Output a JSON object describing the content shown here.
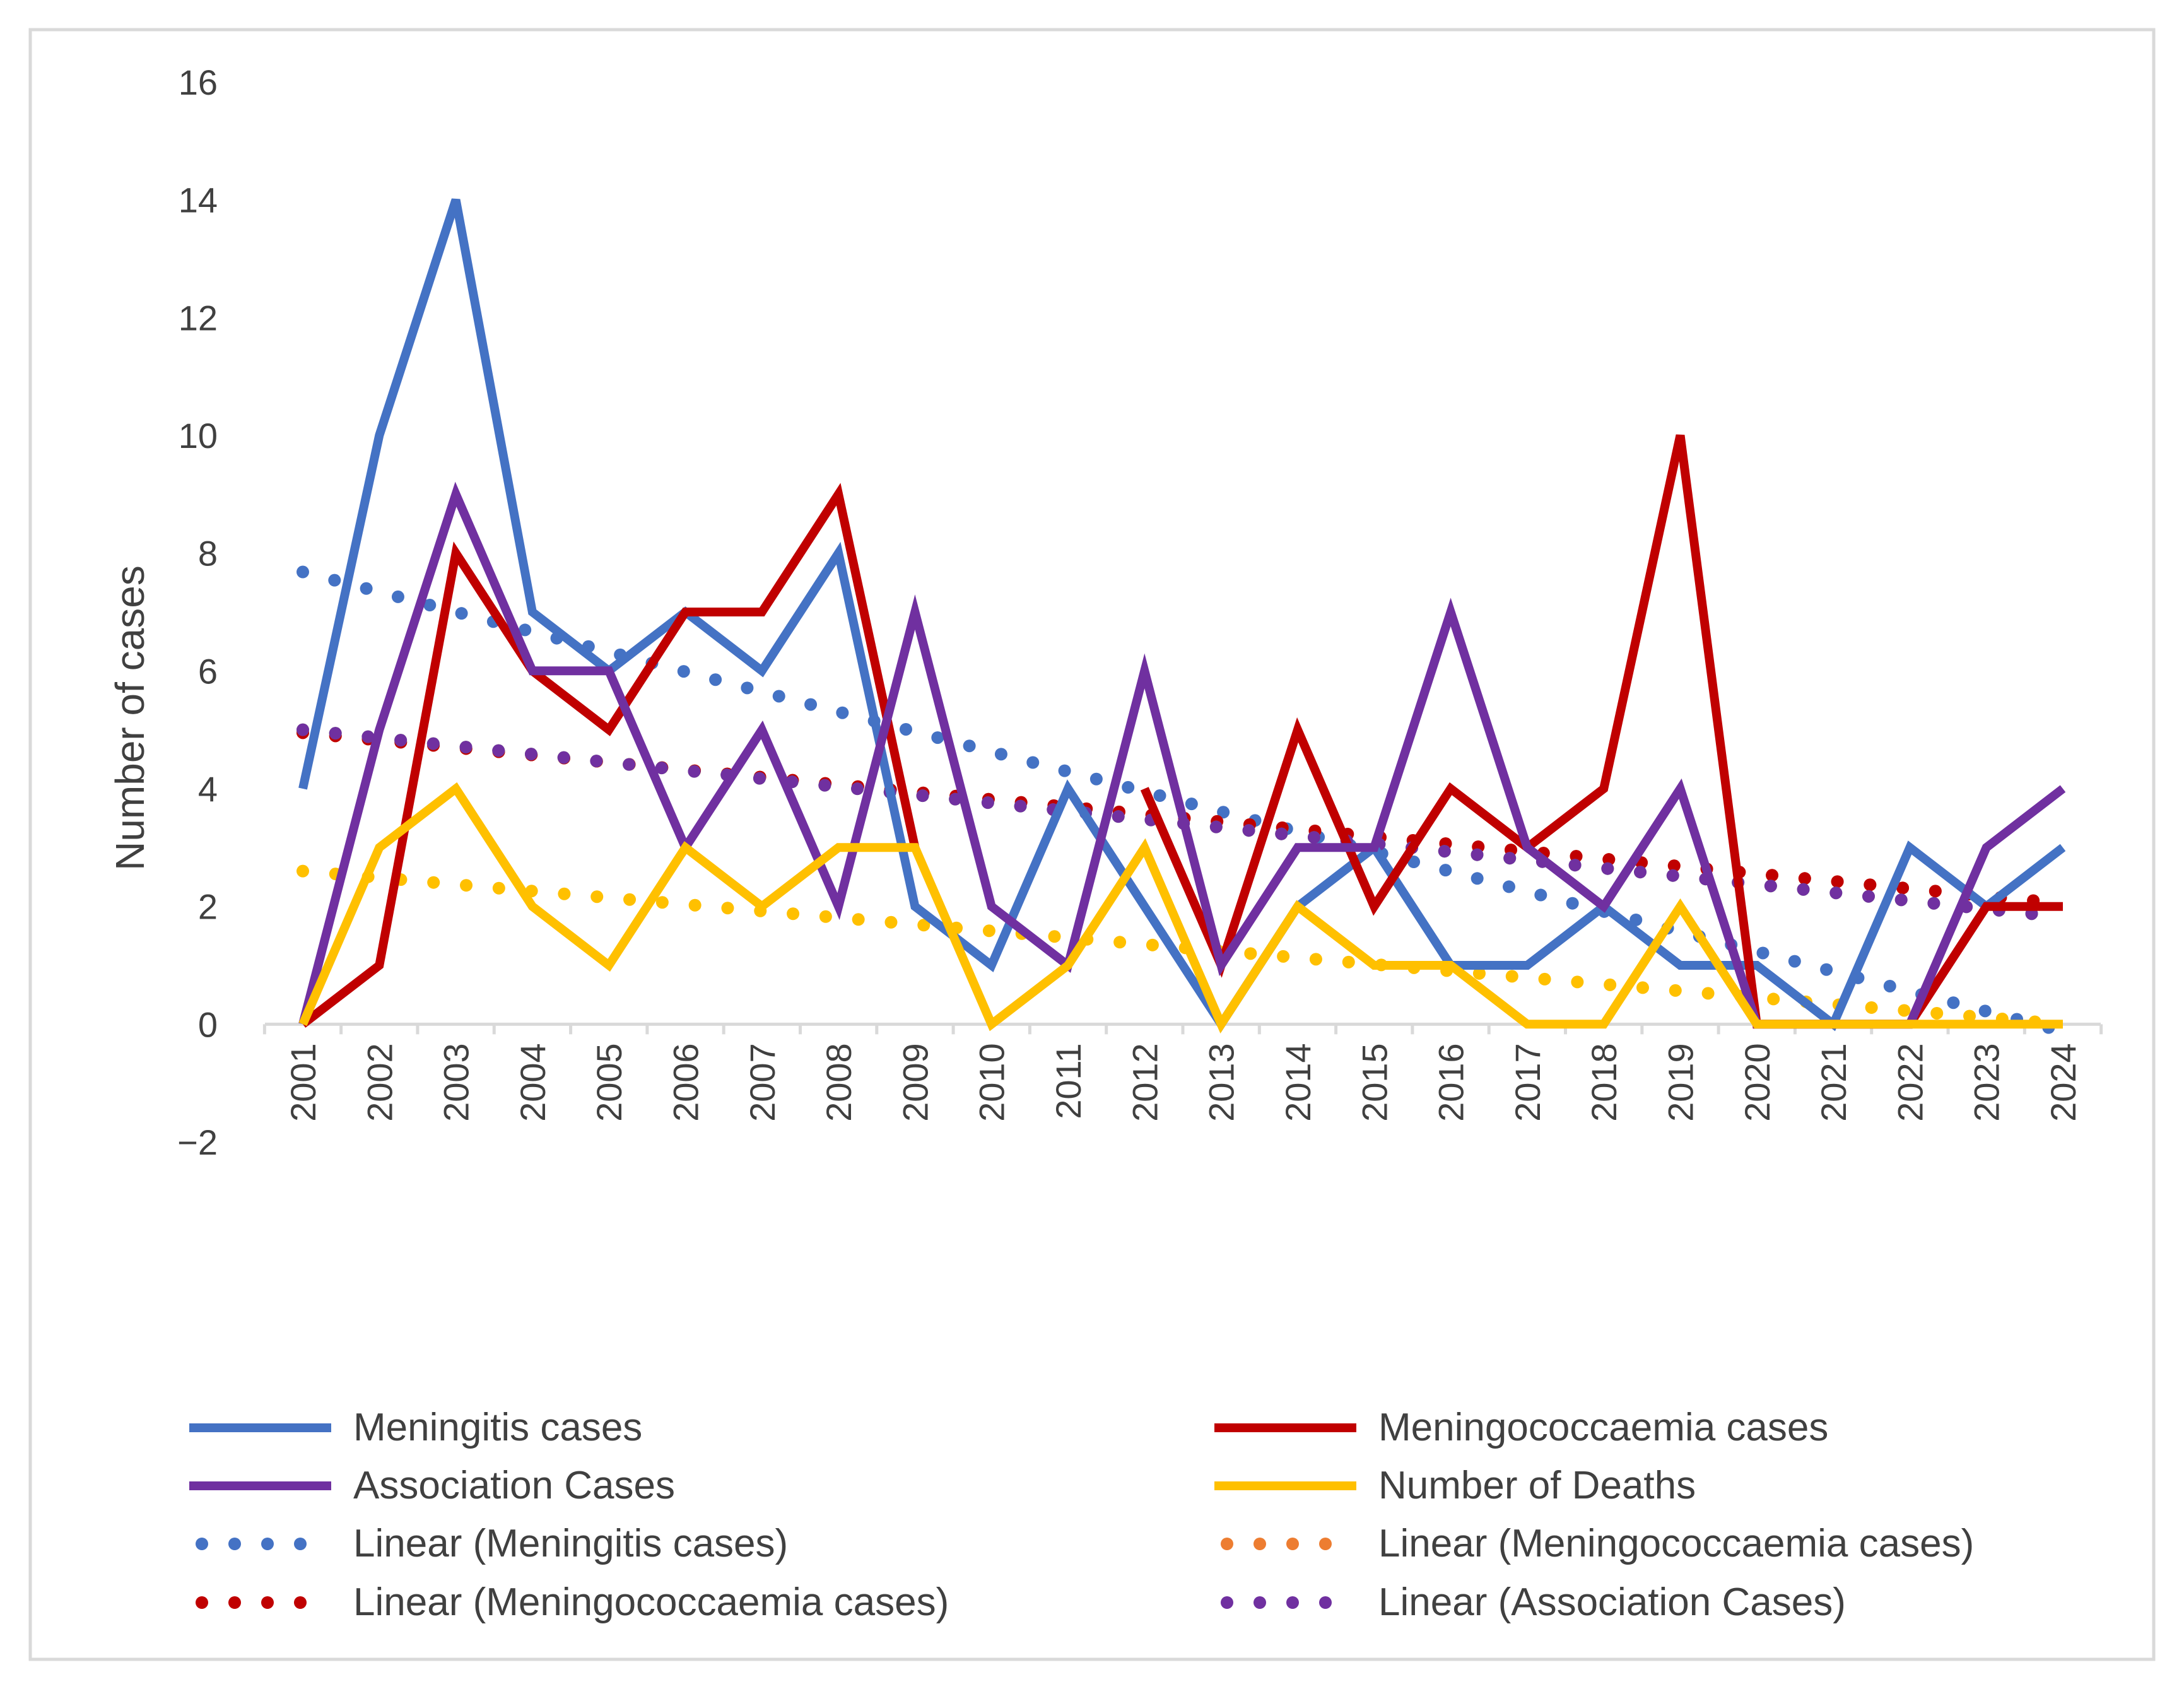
{
  "chart_data": {
    "type": "line",
    "title": "",
    "xlabel": "",
    "ylabel": "Number of cases",
    "ylim": [
      -2,
      16
    ],
    "yticks": [
      -2,
      0,
      2,
      4,
      6,
      8,
      10,
      12,
      14,
      16
    ],
    "ytick_labels": [
      "−2",
      "0",
      "2",
      "4",
      "6",
      "8",
      "10",
      "12",
      "14",
      "16"
    ],
    "categories": [
      "2001",
      "2002",
      "2003",
      "2004",
      "2005",
      "2006",
      "2007",
      "2008",
      "2009",
      "2010",
      "2011",
      "2012",
      "2013",
      "2014",
      "2015",
      "2016",
      "2017",
      "2018",
      "2019",
      "2020",
      "2021",
      "2022",
      "2023",
      "2024"
    ],
    "grid": false,
    "legend_position": "bottom",
    "series": [
      {
        "name": "Meningitis cases",
        "style": "solid",
        "color": "#4472c4",
        "values": [
          4,
          10,
          14,
          7,
          6,
          7,
          6,
          8,
          2,
          1,
          4,
          2,
          0,
          2,
          3,
          1,
          1,
          2,
          1,
          1,
          0,
          3,
          2,
          3
        ]
      },
      {
        "name": "Meningococcaemia cases",
        "style": "solid",
        "color": "#c00000",
        "values": [
          0,
          1,
          8,
          6,
          5,
          7,
          7,
          9,
          3,
          null,
          null,
          4,
          1,
          5,
          2,
          4,
          3,
          4,
          10,
          0,
          0,
          0,
          2,
          2
        ]
      },
      {
        "name": "Association Cases",
        "style": "solid",
        "color": "#7030a0",
        "values": [
          0,
          5,
          9,
          6,
          6,
          3,
          5,
          2,
          7,
          2,
          1,
          6,
          1,
          3,
          3,
          7,
          3,
          2,
          4,
          0,
          0,
          0,
          3,
          4
        ]
      },
      {
        "name": "Number of Deaths",
        "style": "solid",
        "color": "#ffc000",
        "values": [
          0,
          3,
          4,
          2,
          1,
          3,
          2,
          3,
          3,
          0,
          1,
          3,
          0,
          2,
          1,
          1,
          0,
          0,
          2,
          0,
          0,
          0,
          0,
          0
        ]
      }
    ],
    "trendlines": [
      {
        "name": "Linear (Meningitis cases)",
        "style": "dotted",
        "color": "#4472c4",
        "start": 7.68,
        "end": -0.12
      },
      {
        "name": "Linear (Meningococcaemia cases)",
        "style": "dotted",
        "color": "#ed7d31",
        "start": 4.95,
        "end": 2.05
      },
      {
        "name": "Linear (Meningococcaemia cases)",
        "style": "dotted",
        "color": "#c00000",
        "start": 4.95,
        "end": 2.05
      },
      {
        "name": "",
        "style": "dotted",
        "color": "#70ad47",
        "start": 5.0,
        "end": 1.82
      },
      {
        "name": "Linear (Association Cases)",
        "style": "dotted",
        "color": "#7030a0",
        "start": 5.0,
        "end": 1.82
      },
      {
        "name": "",
        "style": "dotted",
        "color": "#ffc000",
        "start": 2.6,
        "end": 0.0
      }
    ],
    "legend": [
      {
        "label": "Meningitis cases",
        "style": "solid",
        "color": "#4472c4"
      },
      {
        "label": "Meningococcaemia cases",
        "style": "solid",
        "color": "#c00000"
      },
      {
        "label": "Association Cases",
        "style": "solid",
        "color": "#7030a0"
      },
      {
        "label": "Number of Deaths",
        "style": "solid",
        "color": "#ffc000"
      },
      {
        "label": "Linear (Meningitis cases)",
        "style": "dotted",
        "color": "#4472c4"
      },
      {
        "label": "Linear (Meningococcaemia cases)",
        "style": "dotted",
        "color": "#ed7d31"
      },
      {
        "label": "Linear (Meningococcaemia cases)",
        "style": "dotted",
        "color": "#c00000"
      },
      {
        "label": "Linear (Association Cases)",
        "style": "dotted",
        "color": "#7030a0"
      }
    ]
  }
}
